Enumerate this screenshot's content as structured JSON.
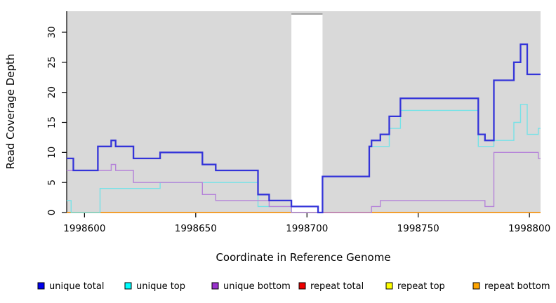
{
  "chart_data": {
    "type": "line",
    "subtype": "step",
    "title": "",
    "xlabel": "Coordinate in Reference Genome",
    "ylabel": "Read Coverage Depth",
    "xlim": [
      1998592,
      1998805
    ],
    "ylim": [
      0,
      33.5
    ],
    "x_ticks": [
      1998600,
      1998650,
      1998700,
      1998750,
      1998800
    ],
    "y_ticks": [
      0,
      5,
      10,
      15,
      20,
      25,
      30
    ],
    "grid": false,
    "panel_background": "#d9d9d9",
    "axis_color": "#000000",
    "mask_region": {
      "x_start": 1998693,
      "x_end": 1998707,
      "fill": "#ffffff",
      "top_border_color": "#8a8a8a"
    },
    "legend_position": "bottom",
    "series": [
      {
        "name": "unique total",
        "line_color": "#3434d9",
        "legend_color": "#0000ee",
        "line_width": 2.3,
        "points": [
          [
            1998592,
            9
          ],
          [
            1998595,
            7
          ],
          [
            1998606,
            11
          ],
          [
            1998612,
            12
          ],
          [
            1998614,
            11
          ],
          [
            1998622,
            9
          ],
          [
            1998634,
            10
          ],
          [
            1998653,
            8
          ],
          [
            1998659,
            7
          ],
          [
            1998678,
            3
          ],
          [
            1998683,
            2
          ],
          [
            1998693,
            1
          ],
          [
            1998705,
            0
          ],
          [
            1998707,
            6
          ],
          [
            1998728,
            11
          ],
          [
            1998729,
            12
          ],
          [
            1998733,
            13
          ],
          [
            1998737,
            16
          ],
          [
            1998742,
            19
          ],
          [
            1998777,
            13
          ],
          [
            1998780,
            12
          ],
          [
            1998784,
            22
          ],
          [
            1998793,
            25
          ],
          [
            1998796,
            28
          ],
          [
            1998799,
            23
          ],
          [
            1998805,
            23
          ]
        ]
      },
      {
        "name": "unique top",
        "line_color": "#76e2e7",
        "legend_color": "#00ffff",
        "line_width": 1.4,
        "points": [
          [
            1998592,
            2
          ],
          [
            1998594,
            0
          ],
          [
            1998607,
            4
          ],
          [
            1998634,
            5
          ],
          [
            1998678,
            1
          ],
          [
            1998693,
            0
          ],
          [
            1998707,
            6
          ],
          [
            1998728,
            11
          ],
          [
            1998737,
            14
          ],
          [
            1998742,
            17
          ],
          [
            1998777,
            11
          ],
          [
            1998784,
            12
          ],
          [
            1998793,
            15
          ],
          [
            1998796,
            18
          ],
          [
            1998799,
            13
          ],
          [
            1998804,
            14
          ],
          [
            1998805,
            14
          ]
        ]
      },
      {
        "name": "unique bottom",
        "line_color": "#b583d9",
        "legend_color": "#9932cc",
        "line_width": 1.4,
        "points": [
          [
            1998592,
            7
          ],
          [
            1998612,
            8
          ],
          [
            1998614,
            7
          ],
          [
            1998622,
            5
          ],
          [
            1998653,
            3
          ],
          [
            1998659,
            2
          ],
          [
            1998683,
            1
          ],
          [
            1998693,
            0
          ],
          [
            1998729,
            1
          ],
          [
            1998733,
            2
          ],
          [
            1998780,
            1
          ],
          [
            1998784,
            10
          ],
          [
            1998804,
            9
          ],
          [
            1998805,
            9
          ]
        ]
      },
      {
        "name": "repeat total",
        "line_color": "#cc2222",
        "legend_color": "#ee0000",
        "line_width": 1.3,
        "points": [
          [
            1998592,
            0
          ],
          [
            1998805,
            0
          ]
        ]
      },
      {
        "name": "repeat top",
        "line_color": "#ffee00",
        "legend_color": "#ffff00",
        "line_width": 1.3,
        "points": [
          [
            1998592,
            0
          ],
          [
            1998805,
            0
          ]
        ]
      },
      {
        "name": "repeat bottom",
        "line_color": "#ff9d1e",
        "legend_color": "#ffa500",
        "line_width": 1.6,
        "points": [
          [
            1998592,
            0
          ],
          [
            1998805,
            0
          ]
        ]
      }
    ]
  }
}
